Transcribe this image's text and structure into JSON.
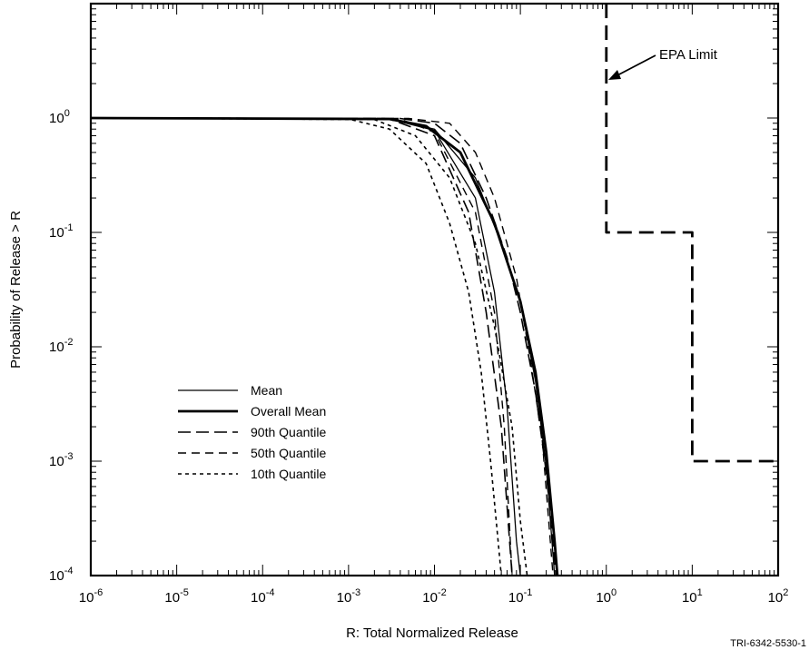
{
  "chart_data": {
    "type": "line",
    "xlabel": "R:  Total Normalized Release",
    "ylabel": "Probability of Release > R",
    "xscale": "log",
    "yscale": "log",
    "xlim": [
      1e-06,
      100
    ],
    "ylim": [
      0.0001,
      10
    ],
    "x_tick_labels": [
      {
        "value": 1e-06,
        "base": "10",
        "exp": "-6"
      },
      {
        "value": 1e-05,
        "base": "10",
        "exp": "-5"
      },
      {
        "value": 0.0001,
        "base": "10",
        "exp": "-4"
      },
      {
        "value": 0.001,
        "base": "10",
        "exp": "-3"
      },
      {
        "value": 0.01,
        "base": "10",
        "exp": "-2"
      },
      {
        "value": 0.1,
        "base": "10",
        "exp": "-1"
      },
      {
        "value": 1,
        "base": "10",
        "exp": "0"
      },
      {
        "value": 10,
        "base": "10",
        "exp": "1"
      },
      {
        "value": 100,
        "base": "10",
        "exp": "2"
      }
    ],
    "y_tick_labels": [
      {
        "value": 1,
        "base": "10",
        "exp": "0"
      },
      {
        "value": 0.1,
        "base": "10",
        "exp": "-1"
      },
      {
        "value": 0.01,
        "base": "10",
        "exp": "-2"
      },
      {
        "value": 0.001,
        "base": "10",
        "exp": "-3"
      },
      {
        "value": 0.0001,
        "base": "10",
        "exp": "-4"
      }
    ],
    "grid": false,
    "legend_position": "lower-left",
    "legend": [
      {
        "label": "Mean",
        "style": "thin-solid"
      },
      {
        "label": "Overall Mean",
        "style": "thick-solid"
      },
      {
        "label": "90th Quantile",
        "style": "long-dash"
      },
      {
        "label": "50th Quantile",
        "style": "medium-dash"
      },
      {
        "label": "10th Quantile",
        "style": "short-dash"
      }
    ],
    "annotation": {
      "text": "EPA Limit"
    },
    "figure_id": "TRI-6342-5530-1",
    "series": [
      {
        "style": "thin-solid",
        "points": [
          [
            1e-06,
            1
          ],
          [
            0.003,
            0.98
          ],
          [
            0.01,
            0.8
          ],
          [
            0.03,
            0.3
          ],
          [
            0.06,
            0.08
          ],
          [
            0.1,
            0.025
          ],
          [
            0.15,
            0.005
          ],
          [
            0.2,
            0.0009
          ],
          [
            0.25,
            0.0001
          ]
        ]
      },
      {
        "style": "thin-solid",
        "points": [
          [
            1e-06,
            1
          ],
          [
            0.003,
            0.98
          ],
          [
            0.01,
            0.78
          ],
          [
            0.03,
            0.2
          ],
          [
            0.05,
            0.03
          ],
          [
            0.07,
            0.003
          ],
          [
            0.09,
            0.0002
          ],
          [
            0.1,
            0.0001
          ]
        ]
      },
      {
        "style": "thick-solid",
        "points": [
          [
            1e-06,
            1
          ],
          [
            0.003,
            0.98
          ],
          [
            0.008,
            0.85
          ],
          [
            0.02,
            0.5
          ],
          [
            0.05,
            0.12
          ],
          [
            0.1,
            0.025
          ],
          [
            0.15,
            0.006
          ],
          [
            0.2,
            0.0012
          ],
          [
            0.25,
            0.0002
          ],
          [
            0.27,
            0.0001
          ]
        ]
      },
      {
        "style": "long-dash",
        "points": [
          [
            1e-06,
            1
          ],
          [
            0.004,
            0.99
          ],
          [
            0.01,
            0.9
          ],
          [
            0.02,
            0.6
          ],
          [
            0.04,
            0.2
          ],
          [
            0.07,
            0.06
          ],
          [
            0.1,
            0.02
          ],
          [
            0.15,
            0.004
          ],
          [
            0.2,
            0.0008
          ],
          [
            0.26,
            0.0001
          ]
        ]
      },
      {
        "style": "long-dash",
        "points": [
          [
            1e-06,
            1
          ],
          [
            0.003,
            0.98
          ],
          [
            0.01,
            0.7
          ],
          [
            0.025,
            0.15
          ],
          [
            0.04,
            0.02
          ],
          [
            0.06,
            0.002
          ],
          [
            0.08,
            0.0001
          ]
        ]
      },
      {
        "style": "medium-dash",
        "points": [
          [
            1e-06,
            1
          ],
          [
            0.005,
            0.99
          ],
          [
            0.015,
            0.9
          ],
          [
            0.03,
            0.5
          ],
          [
            0.05,
            0.2
          ],
          [
            0.09,
            0.04
          ],
          [
            0.13,
            0.008
          ],
          [
            0.18,
            0.0015
          ],
          [
            0.24,
            0.0001
          ]
        ]
      },
      {
        "style": "medium-dash",
        "points": [
          [
            1e-06,
            1
          ],
          [
            0.004,
            0.98
          ],
          [
            0.01,
            0.75
          ],
          [
            0.03,
            0.15
          ],
          [
            0.05,
            0.02
          ],
          [
            0.065,
            0.002
          ],
          [
            0.08,
            0.0001
          ]
        ]
      },
      {
        "style": "short-dash",
        "points": [
          [
            1e-06,
            1
          ],
          [
            0.001,
            0.98
          ],
          [
            0.003,
            0.8
          ],
          [
            0.008,
            0.4
          ],
          [
            0.015,
            0.12
          ],
          [
            0.025,
            0.03
          ],
          [
            0.035,
            0.006
          ],
          [
            0.045,
            0.001
          ],
          [
            0.055,
            0.0002
          ],
          [
            0.06,
            0.0001
          ]
        ]
      },
      {
        "style": "short-dash",
        "points": [
          [
            1e-06,
            1
          ],
          [
            0.002,
            0.97
          ],
          [
            0.006,
            0.7
          ],
          [
            0.015,
            0.3
          ],
          [
            0.03,
            0.08
          ],
          [
            0.05,
            0.015
          ],
          [
            0.08,
            0.002
          ],
          [
            0.1,
            0.0003
          ],
          [
            0.12,
            0.0001
          ]
        ]
      },
      {
        "style": "epa-limit",
        "points": [
          [
            1,
            10
          ],
          [
            1,
            0.1
          ],
          [
            10,
            0.1
          ],
          [
            10,
            0.001
          ],
          [
            100,
            0.001
          ]
        ]
      }
    ]
  }
}
